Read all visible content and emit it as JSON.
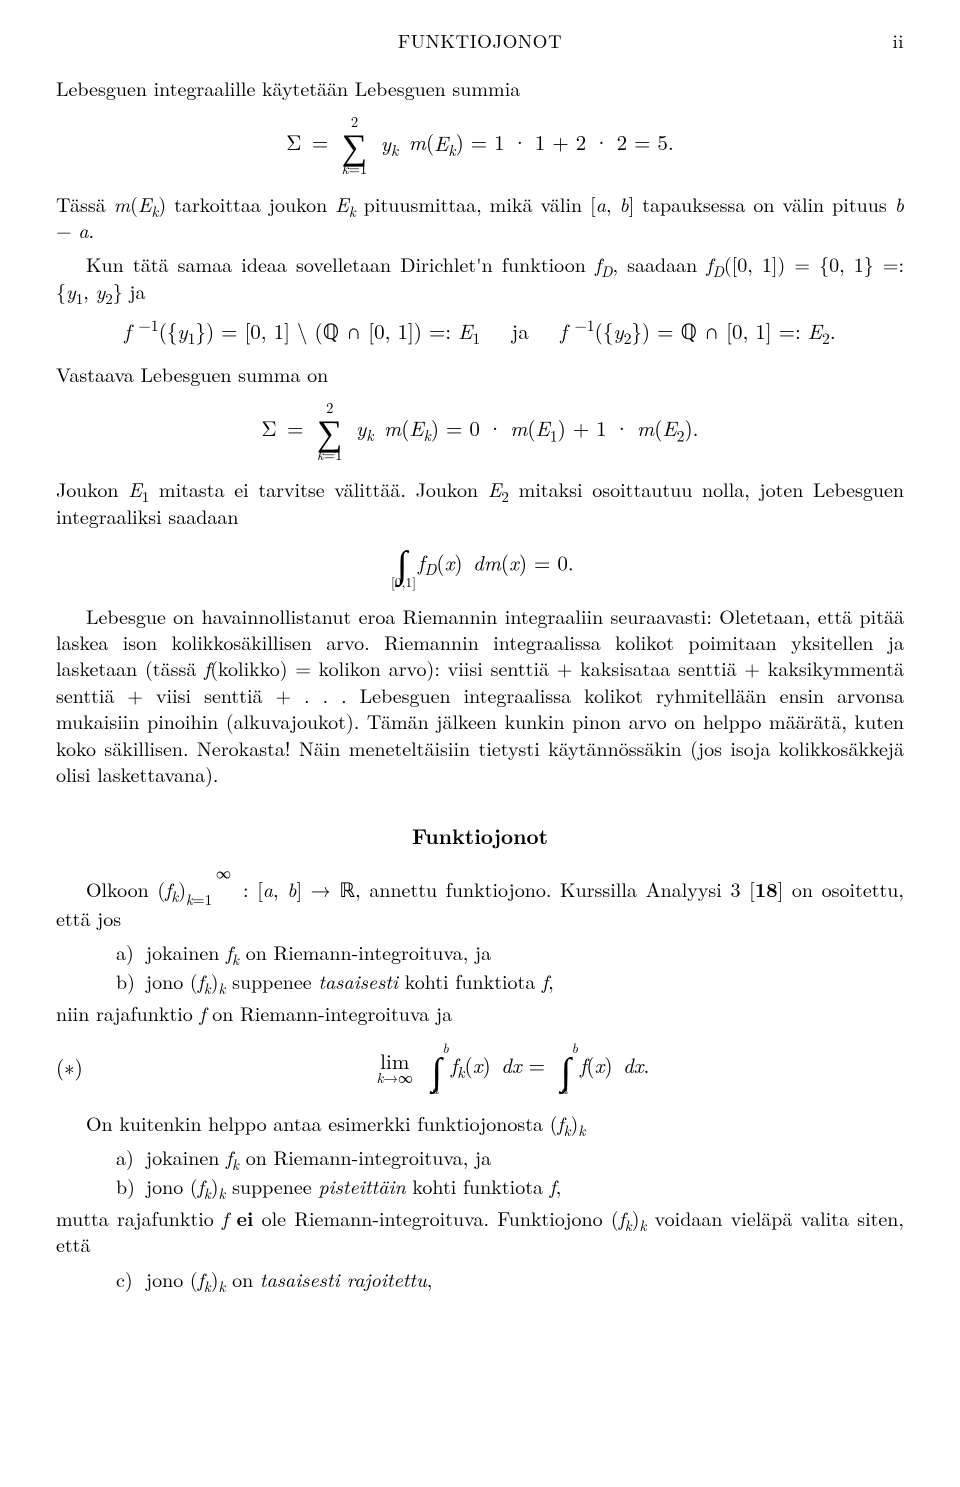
{
  "running_head": {
    "center": "FUNKTIOJONOT",
    "right": "ii"
  },
  "para1": "Lebesguen integraalille käytetään Lebesguen summia",
  "eq1": {
    "sum_lower": "k=1",
    "sum_upper": "2",
    "body_lhs": "Σ = ",
    "body_rhs": " y_k m(E_k) = 1 · 1 + 2 · 2 = 5."
  },
  "para2": "Tässä m(E_k) tarkoittaa joukon E_k pituusmittaa, mikä välin [a, b] tapauksessa on välin pituus b − a.",
  "para3": "Kun tätä samaa ideaa sovelletaan Dirichlet'n funktioon f_D, saadaan f_D([0, 1]) = {0, 1} =: {y_1, y_2} ja",
  "eq2": "f⁻¹({y₁}) = [0, 1] \\ (ℚ ∩ [0, 1]) =: E₁    ja    f⁻¹({y₂}) = ℚ ∩ [0, 1] =: E₂.",
  "para4": "Vastaava Lebesguen summa on",
  "eq3": {
    "sum_lower": "k=1",
    "sum_upper": "2",
    "body_lhs": "Σ = ",
    "body_rhs": " y_k m(E_k) = 0 · m(E₁) + 1 · m(E₂)."
  },
  "para5": "Joukon E₁ mitasta ei tarvitse välittää. Joukon E₂ mitaksi osoittautuu nolla, joten Lebesguen integraaliksi saadaan",
  "eq4": {
    "sub": "[0,1]",
    "body": " f_D(x) dm(x) = 0."
  },
  "para6": "Lebesgue on havainnollistanut eroa Riemannin integraaliin seuraavasti: Oletetaan, että pitää laskea ison kolikkosäkillisen arvo. Riemannin integraalissa kolikot poimitaan yksitellen ja lasketaan (tässä f(kolikko) = kolikon arvo): viisi senttiä + kaksisataa senttiä + kaksikymmentä senttiä + viisi senttiä + . . . Lebesguen integraalissa kolikot ryhmitellään ensin arvonsa mukaisiin pinoihin (alkuvajoukot). Tämän jälkeen kunkin pinon arvo on helppo määrätä, kuten koko säkillisen. Nerokasta! Näin meneteltäisiin tietysti käytännössäkin (jos isoja kolikkosäkkejä olisi laskettavana).",
  "section_title": "Funktiojonot",
  "para7a": "Olkoon (f_k)_{k=1}^∞ : [a, b] → ℝ, annettu funktiojono. Kurssilla Analyysi 3 [",
  "para7b": "] on osoitettu, että jos",
  "ref18": "18",
  "list1": {
    "a": "jokainen f_k on Riemann-integroituva, ja",
    "b_pre": "jono (f_k)_k suppenee ",
    "b_em": "tasaisesti",
    "b_post": " kohti funktiota f,"
  },
  "para8": "niin rajafunktio f on Riemann-integroituva ja",
  "eq5": {
    "tag": "(∗)",
    "lim_top": "lim",
    "lim_bot": "k→∞",
    "int_lower": "a",
    "int_upper": "b",
    "lhs_body": " f_k(x) dx = ",
    "rhs_body": " f(x) dx."
  },
  "para9": "On kuitenkin helppo antaa esimerkki funktiojonosta (f_k)_k",
  "list2": {
    "a": "jokainen f_k on Riemann-integroituva, ja",
    "b_pre": "jono (f_k)_k suppenee ",
    "b_em": "pisteittäin",
    "b_post": " kohti funktiota f,"
  },
  "para10_pre": "mutta rajafunktio f ",
  "para10_bold": "ei",
  "para10_post": " ole Riemann-integroituva. Funktiojono (f_k)_k voidaan vieläpä valita siten, että",
  "list3": {
    "c_pre": "jono (f_k)_k on ",
    "c_em": "tasaisesti rajoitettu",
    "c_post": ","
  }
}
